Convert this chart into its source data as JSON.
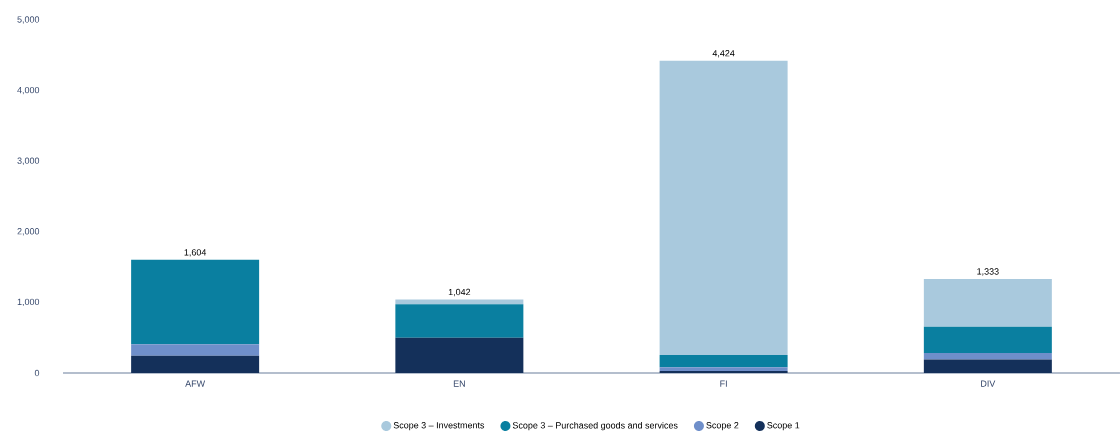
{
  "chart_data": {
    "type": "bar",
    "stacked": true,
    "legend": "bottom",
    "categories": [
      "AFW",
      "EN",
      "FI",
      "DIV"
    ],
    "series": [
      {
        "name": "Scope 1",
        "color": "#14305a",
        "values": [
          246,
          500,
          30,
          190
        ]
      },
      {
        "name": "Scope 2",
        "color": "#6f8fca",
        "values": [
          160,
          0,
          50,
          95
        ]
      },
      {
        "name": "Scope 3 – Purchased goods and services",
        "color": "#0a7fa0",
        "values": [
          1198,
          475,
          175,
          370
        ]
      },
      {
        "name": "Scope 3 – Investments",
        "color": "#a9c9dd",
        "values": [
          0,
          67,
          4169,
          678
        ]
      }
    ],
    "totals": [
      "1,604",
      "1,042",
      "4,424",
      "1,333"
    ],
    "ylim": [
      0,
      5000
    ],
    "yticks": [
      0,
      {
        "value": 1000,
        "label": "1,000"
      },
      {
        "value": 2000,
        "label": "2,000"
      },
      {
        "value": 3000,
        "label": "3,000"
      },
      {
        "value": 4000,
        "label": "4,000"
      },
      {
        "value": 5000,
        "label": "5,000"
      }
    ]
  }
}
